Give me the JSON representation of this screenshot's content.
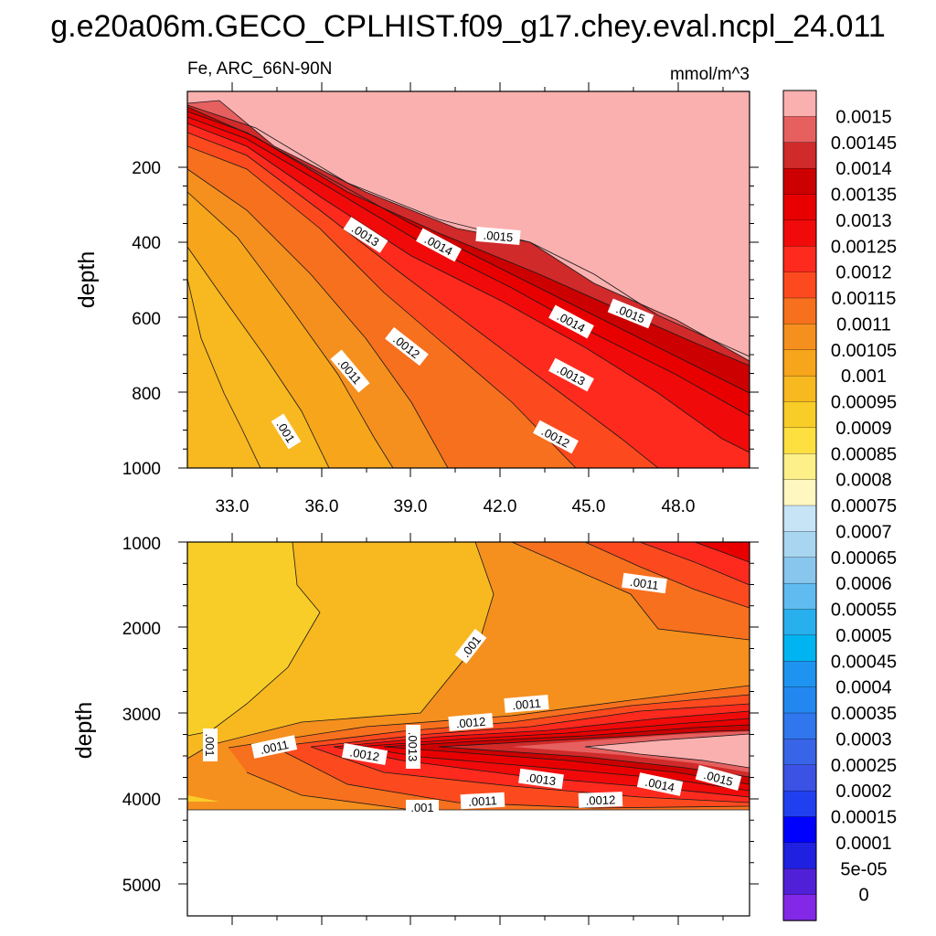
{
  "chart_data": {
    "type": "contour",
    "title": "g.e20a06m.GECO_CPLHIST.f09_g17.chey.eval.ncpl_24.011",
    "variable_label": "Fe, ARC_66N-90N",
    "units": "mmol/m^3",
    "panels": [
      {
        "name": "upper",
        "ylabel": "depth",
        "ylim": [
          1000,
          30
        ],
        "xlim": [
          31.5,
          50.5
        ],
        "yticks": [
          "200",
          "400",
          "600",
          "800",
          "1000"
        ],
        "xticks": [
          "33.0",
          "36.0",
          "39.0",
          "42.0",
          "45.0",
          "48.0"
        ],
        "contour_labels": [
          ".0015",
          ".0015",
          ".0014",
          ".0014",
          ".0013",
          ".0013",
          ".0012",
          ".0012",
          ".0011",
          ".001"
        ]
      },
      {
        "name": "lower",
        "ylabel": "depth",
        "ylim": [
          1000,
          5400
        ],
        "xlim": [
          31.5,
          50.5
        ],
        "yticks": [
          "1000",
          "2000",
          "3000",
          "4000",
          "5000"
        ],
        "contour_labels": [
          ".0011",
          ".001",
          ".0011",
          ".0012",
          ".001",
          ".0011",
          ".0012",
          ".0013",
          ".0013",
          ".0014",
          ".0015",
          ".001",
          ".0011",
          ".0012"
        ]
      }
    ],
    "colorbar": {
      "labels": [
        "0.0015",
        "0.00145",
        "0.0014",
        "0.00135",
        "0.0013",
        "0.00125",
        "0.0012",
        "0.00115",
        "0.0011",
        "0.00105",
        "0.001",
        "0.00095",
        "0.0009",
        "0.00085",
        "0.0008",
        "0.00075",
        "0.0007",
        "0.00065",
        "0.0006",
        "0.00055",
        "0.0005",
        "0.00045",
        "0.0004",
        "0.00035",
        "0.0003",
        "0.00025",
        "0.0002",
        "0.00015",
        "0.0001",
        "5e-05",
        "0"
      ],
      "colors": [
        "#fbb0b0",
        "#e66060",
        "#d02a2a",
        "#cc0000",
        "#e80000",
        "#f00a0a",
        "#ff2a1e",
        "#fc4a1e",
        "#f7701e",
        "#f5901e",
        "#f7a51a",
        "#f8b820",
        "#f8cd28",
        "#fde040",
        "#fef088",
        "#fef8c0",
        "#c6e4f6",
        "#a8d6f0",
        "#88c6ee",
        "#60bcf0",
        "#28b0ee",
        "#00b4f2",
        "#1e94f0",
        "#2288f0",
        "#3076ec",
        "#3864e8",
        "#3c52e4",
        "#2040f0",
        "#0000ff",
        "#2020e0",
        "#5020d8",
        "#8428e8"
      ]
    }
  }
}
